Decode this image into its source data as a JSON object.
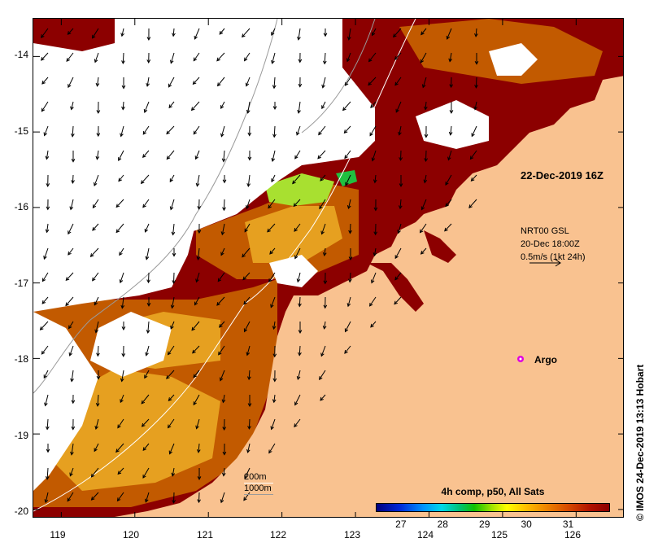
{
  "axes": {
    "x_ticks": [
      {
        "value": 119,
        "label": "119"
      },
      {
        "value": 120,
        "label": "120"
      },
      {
        "value": 121,
        "label": "121"
      },
      {
        "value": 122,
        "label": "122"
      },
      {
        "value": 123,
        "label": "123"
      },
      {
        "value": 124,
        "label": "124"
      },
      {
        "value": 125,
        "label": "125"
      },
      {
        "value": 126,
        "label": "126"
      }
    ],
    "y_ticks": [
      {
        "value": -14,
        "label": "-14"
      },
      {
        "value": -15,
        "label": "-15"
      },
      {
        "value": -16,
        "label": "-16"
      },
      {
        "value": -17,
        "label": "-17"
      },
      {
        "value": -18,
        "label": "-18"
      },
      {
        "value": -19,
        "label": "-19"
      },
      {
        "value": -20,
        "label": "-20"
      }
    ],
    "lon_range": [
      118.62,
      126.66
    ],
    "lat_range": [
      -20.12,
      -13.5
    ]
  },
  "annotations": {
    "timestamp": "22-Dec-2019 16Z",
    "current_legend": [
      "NRT00 GSL",
      "20-Dec 18:00Z",
      "0.5m/s (1kt 24h)"
    ],
    "argo_label": "Argo",
    "argo_position": {
      "lon": 125.3,
      "lat": -18.0
    },
    "depth_contours": [
      "200m",
      "1000m"
    ]
  },
  "colorbar": {
    "title": "4h comp, p50, All Sats",
    "range": [
      26.4,
      32.0
    ],
    "ticks": [
      {
        "value": 27,
        "label": "27"
      },
      {
        "value": 28,
        "label": "28"
      },
      {
        "value": 29,
        "label": "29"
      },
      {
        "value": 30,
        "label": "30"
      },
      {
        "value": 31,
        "label": "31"
      }
    ]
  },
  "credit": "© IMOS 24-Dec-2019 13:13 Hobart",
  "colors": {
    "land": "#f9c290",
    "sst_warm": "#8c0000",
    "sst_mid": "#c25a00",
    "sst_cool": "#e6a020",
    "cloud": "#ffffff",
    "contour_200m": "#ffffff",
    "contour_1000m": "#9a9a9a",
    "argo": "#e000e0"
  }
}
